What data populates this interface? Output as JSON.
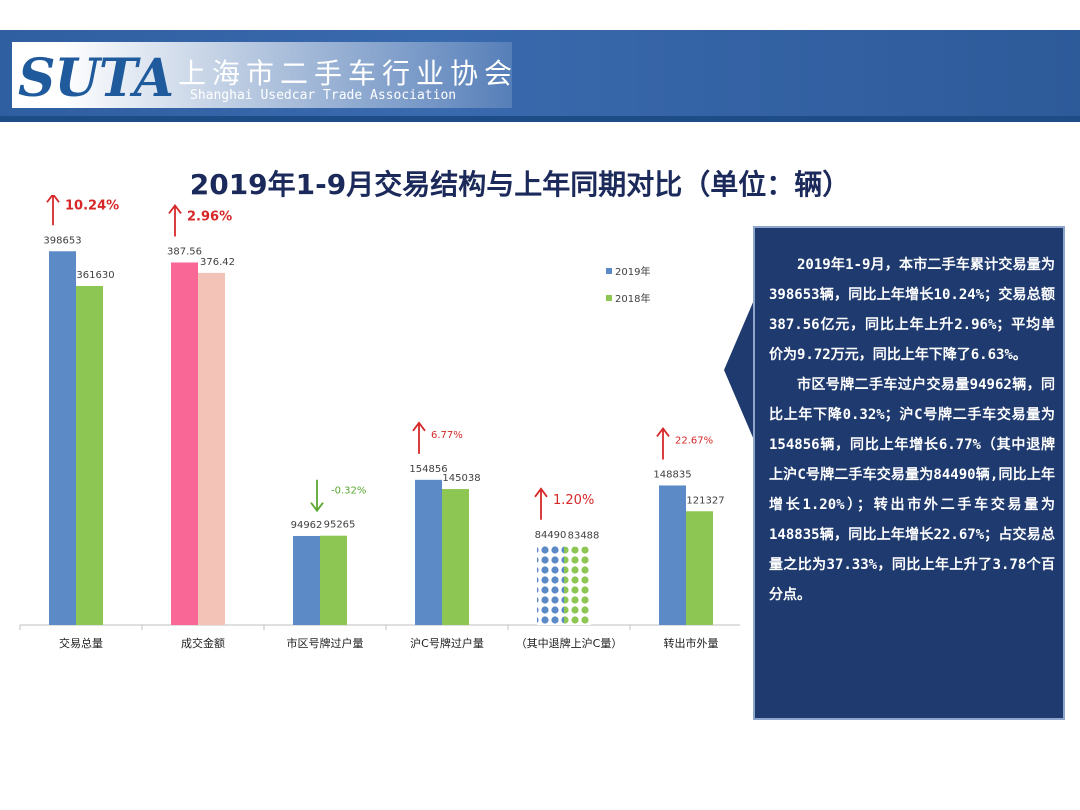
{
  "header": {
    "logo": "SUTA",
    "org_name_cn": "上海市二手车行业协会",
    "org_name_en": "Shanghai Usedcar Trade Association"
  },
  "colors": {
    "header_bg": "#2f5fa0",
    "series_2019": "#5b8ac7",
    "series_2018": "#8dc653",
    "amount_2019": "#f86796",
    "amount_2018": "#f4c3b8",
    "up_arrow": "#d62828",
    "down_arrow": "#5aa832",
    "note_bg": "#1e3a6e"
  },
  "chart_data": {
    "type": "bar",
    "title": "2019年1-9月交易结构与上年同期对比（单位：辆）",
    "categories": [
      "交易总量",
      "成交金额",
      "市区号牌过户量",
      "沪C号牌过户量",
      "（其中退牌上沪C量）",
      "转出市外量"
    ],
    "series": [
      {
        "name": "2019年",
        "values": [
          398653,
          387.56,
          94962,
          154856,
          84490,
          148835
        ]
      },
      {
        "name": "2018年",
        "values": [
          361630,
          376.42,
          95265,
          145038,
          83488,
          121327
        ]
      }
    ],
    "value_labels_2019": [
      "398653",
      "387.56",
      "94962",
      "154856",
      "84490",
      "148835"
    ],
    "value_labels_2018": [
      "361630",
      "376.42",
      "95265",
      "145038",
      "83488",
      "121327"
    ],
    "changes": [
      {
        "label": "10.24%",
        "direction": "up"
      },
      {
        "label": "2.96%",
        "direction": "up"
      },
      {
        "label": "-0.32%",
        "direction": "down"
      },
      {
        "label": "6.77%",
        "direction": "up"
      },
      {
        "label": "1.20%",
        "direction": "up"
      },
      {
        "label": "22.67%",
        "direction": "up"
      }
    ],
    "legend": [
      "2019年",
      "2018年"
    ],
    "legend_position": "top-right",
    "grid": false,
    "ylim": [
      0,
      400000
    ]
  },
  "note": {
    "paragraph1": "2019年1-9月，本市二手车累计交易量为398653辆，同比上年增长10.24%；交易总额387.56亿元，同比上年上升2.96%；平均单价为9.72万元，同比上年下降了6.63%。",
    "paragraph2": "市区号牌二手车过户交易量94962辆，同比上年下降0.32%；沪C号牌二手车交易量为154856辆，同比上年增长6.77%（其中退牌上沪C号牌二手车交易量为84490辆,同比上年增长1.20%）；转出市外二手车交易量为148835辆，同比上年增长22.67%；占交易总量之比为37.33%，同比上年上升了3.78个百分点。"
  }
}
